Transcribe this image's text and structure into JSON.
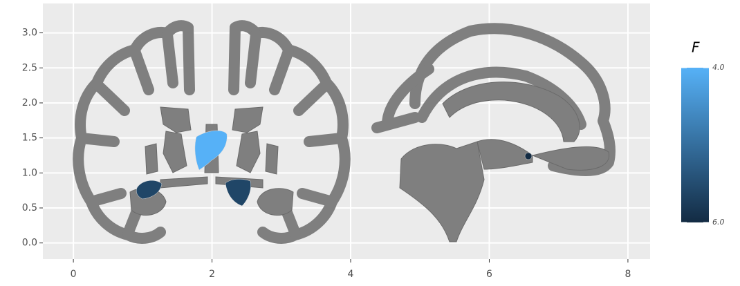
{
  "chart_data": {
    "type": "atlas",
    "values": [
      4.0,
      5.6,
      5.6,
      6.0
    ],
    "xlim": [
      -0.44,
      8.32
    ],
    "xticks": [
      0,
      2,
      4,
      6,
      8
    ],
    "ylim": [
      -0.23,
      3.42
    ],
    "yticks": [
      {
        "value": 0,
        "label": "0.0"
      },
      0.5,
      {
        "value": 1,
        "label": "1.0"
      },
      1.5,
      {
        "value": 2,
        "label": "2.0"
      },
      2.5,
      {
        "value": 3,
        "label": "3.0"
      }
    ],
    "grid": true,
    "legend": {
      "title": "F",
      "limits": [
        4,
        6
      ],
      "colors": [
        "#56B1F7",
        "#132B43"
      ],
      "ticks": [
        {
          "value": 4,
          "label": "4.0"
        },
        {
          "value": 6,
          "label": "6.0"
        }
      ]
    }
  }
}
